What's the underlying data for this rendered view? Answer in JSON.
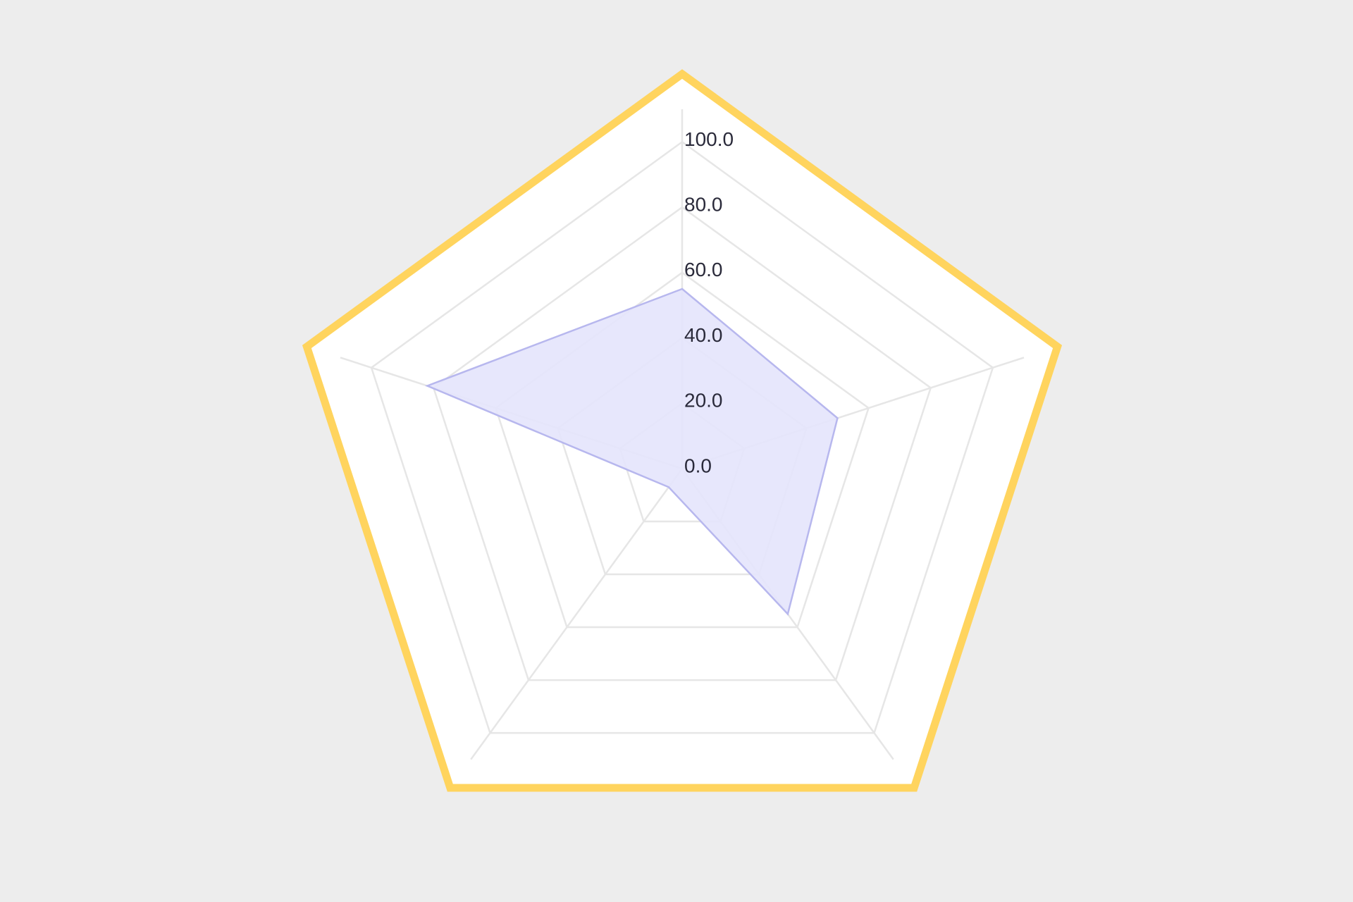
{
  "chart_data": {
    "type": "radar",
    "axes_count": 5,
    "rlim": [
      0,
      110
    ],
    "ticks": [
      0,
      20,
      40,
      60,
      80,
      100
    ],
    "tick_labels": [
      "0.0",
      "20.0",
      "40.0",
      "60.0",
      "80.0",
      "100.0"
    ],
    "grid": true,
    "series": [
      {
        "values": [
          55,
          50,
          55,
          7,
          82
        ]
      }
    ],
    "colors": {
      "frame": "#ffd45e",
      "panel": "#ffffff",
      "grid": "#e6e6e6",
      "fill": "#e4e4fc",
      "stroke": "#b7b7ee",
      "background": "#ededed"
    }
  }
}
